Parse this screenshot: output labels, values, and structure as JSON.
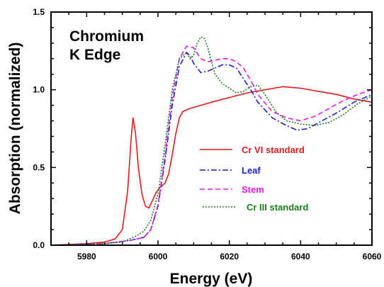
{
  "chart_data": {
    "type": "line",
    "title": "",
    "xlabel": "Energy (eV)",
    "ylabel": "Absorption (normalized)",
    "xlim": [
      5970,
      6060
    ],
    "ylim": [
      0.0,
      1.5
    ],
    "x_ticks": [
      5980,
      6000,
      6020,
      6040,
      6060
    ],
    "y_ticks": [
      0.0,
      0.5,
      1.0,
      1.5
    ],
    "x_tick_labels": [
      "5980",
      "6000",
      "6020",
      "6040",
      "6060"
    ],
    "y_tick_labels": [
      "0.0",
      "0.5",
      "1.0",
      "1.5"
    ],
    "grid": false,
    "legend_position": "center-right",
    "annotation": {
      "line1": "Chromium",
      "line2": "K Edge"
    },
    "series": [
      {
        "name": "Cr VI standard",
        "color": "#e41a1c",
        "dash": "solid",
        "points": [
          [
            5970,
            0.0
          ],
          [
            5980,
            0.01
          ],
          [
            5985,
            0.02
          ],
          [
            5988,
            0.04
          ],
          [
            5990,
            0.1
          ],
          [
            5991.5,
            0.35
          ],
          [
            5992.5,
            0.7
          ],
          [
            5993,
            0.82
          ],
          [
            5993.7,
            0.72
          ],
          [
            5994.5,
            0.5
          ],
          [
            5995.5,
            0.33
          ],
          [
            5996.5,
            0.25
          ],
          [
            5997.5,
            0.24
          ],
          [
            5998.5,
            0.29
          ],
          [
            5999.5,
            0.34
          ],
          [
            6000.5,
            0.37
          ],
          [
            6002,
            0.4
          ],
          [
            6003,
            0.46
          ],
          [
            6004,
            0.58
          ],
          [
            6005,
            0.72
          ],
          [
            6006,
            0.82
          ],
          [
            6007,
            0.86
          ],
          [
            6009,
            0.88
          ],
          [
            6012,
            0.9
          ],
          [
            6015,
            0.92
          ],
          [
            6020,
            0.95
          ],
          [
            6025,
            0.98
          ],
          [
            6030,
            1.0
          ],
          [
            6035,
            1.02
          ],
          [
            6040,
            1.01
          ],
          [
            6045,
            0.99
          ],
          [
            6050,
            0.97
          ],
          [
            6055,
            0.94
          ],
          [
            6060,
            0.92
          ]
        ]
      },
      {
        "name": "Leaf",
        "color": "#1f1fd0",
        "dash": "dashdot",
        "points": [
          [
            5970,
            0.0
          ],
          [
            5985,
            0.01
          ],
          [
            5992,
            0.03
          ],
          [
            5996,
            0.05
          ],
          [
            5998,
            0.1
          ],
          [
            6000,
            0.25
          ],
          [
            6002,
            0.55
          ],
          [
            6004,
            0.9
          ],
          [
            6006,
            1.15
          ],
          [
            6008,
            1.24
          ],
          [
            6009,
            1.22
          ],
          [
            6010,
            1.17
          ],
          [
            6012,
            1.11
          ],
          [
            6014,
            1.12
          ],
          [
            6016,
            1.14
          ],
          [
            6018,
            1.16
          ],
          [
            6020,
            1.16
          ],
          [
            6022,
            1.14
          ],
          [
            6024,
            1.07
          ],
          [
            6026,
            1.0
          ],
          [
            6028,
            0.92
          ],
          [
            6032,
            0.82
          ],
          [
            6036,
            0.77
          ],
          [
            6039,
            0.74
          ],
          [
            6042,
            0.75
          ],
          [
            6046,
            0.8
          ],
          [
            6050,
            0.85
          ],
          [
            6055,
            0.92
          ],
          [
            6060,
            0.97
          ]
        ]
      },
      {
        "name": "Stem",
        "color": "#e619e6",
        "dash": "dashed",
        "points": [
          [
            5970,
            0.0
          ],
          [
            5985,
            0.01
          ],
          [
            5992,
            0.03
          ],
          [
            5996,
            0.05
          ],
          [
            5998,
            0.1
          ],
          [
            6000,
            0.26
          ],
          [
            6002,
            0.58
          ],
          [
            6004,
            0.95
          ],
          [
            6006,
            1.2
          ],
          [
            6008,
            1.28
          ],
          [
            6010,
            1.27
          ],
          [
            6012,
            1.2
          ],
          [
            6014,
            1.18
          ],
          [
            6016,
            1.19
          ],
          [
            6018,
            1.2
          ],
          [
            6020,
            1.2
          ],
          [
            6022,
            1.18
          ],
          [
            6024,
            1.14
          ],
          [
            6026,
            1.06
          ],
          [
            6028,
            0.97
          ],
          [
            6032,
            0.86
          ],
          [
            6036,
            0.82
          ],
          [
            6040,
            0.8
          ],
          [
            6044,
            0.83
          ],
          [
            6048,
            0.88
          ],
          [
            6052,
            0.93
          ],
          [
            6056,
            0.97
          ],
          [
            6060,
            1.0
          ]
        ]
      },
      {
        "name": "Cr III standard",
        "color": "#1a7f1a",
        "dash": "dotted",
        "points": [
          [
            5970,
            0.0
          ],
          [
            5985,
            0.01
          ],
          [
            5990,
            0.02
          ],
          [
            5994,
            0.06
          ],
          [
            5996,
            0.09
          ],
          [
            5998,
            0.16
          ],
          [
            6000,
            0.33
          ],
          [
            6002,
            0.65
          ],
          [
            6004,
            1.0
          ],
          [
            6006,
            1.2
          ],
          [
            6008,
            1.24
          ],
          [
            6009,
            1.2
          ],
          [
            6010,
            1.22
          ],
          [
            6011,
            1.3
          ],
          [
            6012,
            1.34
          ],
          [
            6013,
            1.33
          ],
          [
            6014,
            1.27
          ],
          [
            6015,
            1.18
          ],
          [
            6016,
            1.1
          ],
          [
            6018,
            1.04
          ],
          [
            6020,
            1.01
          ],
          [
            6022,
            0.98
          ],
          [
            6024,
            0.99
          ],
          [
            6026,
            1.02
          ],
          [
            6028,
            1.03
          ],
          [
            6030,
            0.97
          ],
          [
            6033,
            0.86
          ],
          [
            6036,
            0.8
          ],
          [
            6040,
            0.78
          ],
          [
            6044,
            0.77
          ],
          [
            6048,
            0.79
          ],
          [
            6052,
            0.84
          ],
          [
            6056,
            0.91
          ],
          [
            6060,
            0.96
          ]
        ]
      }
    ]
  }
}
